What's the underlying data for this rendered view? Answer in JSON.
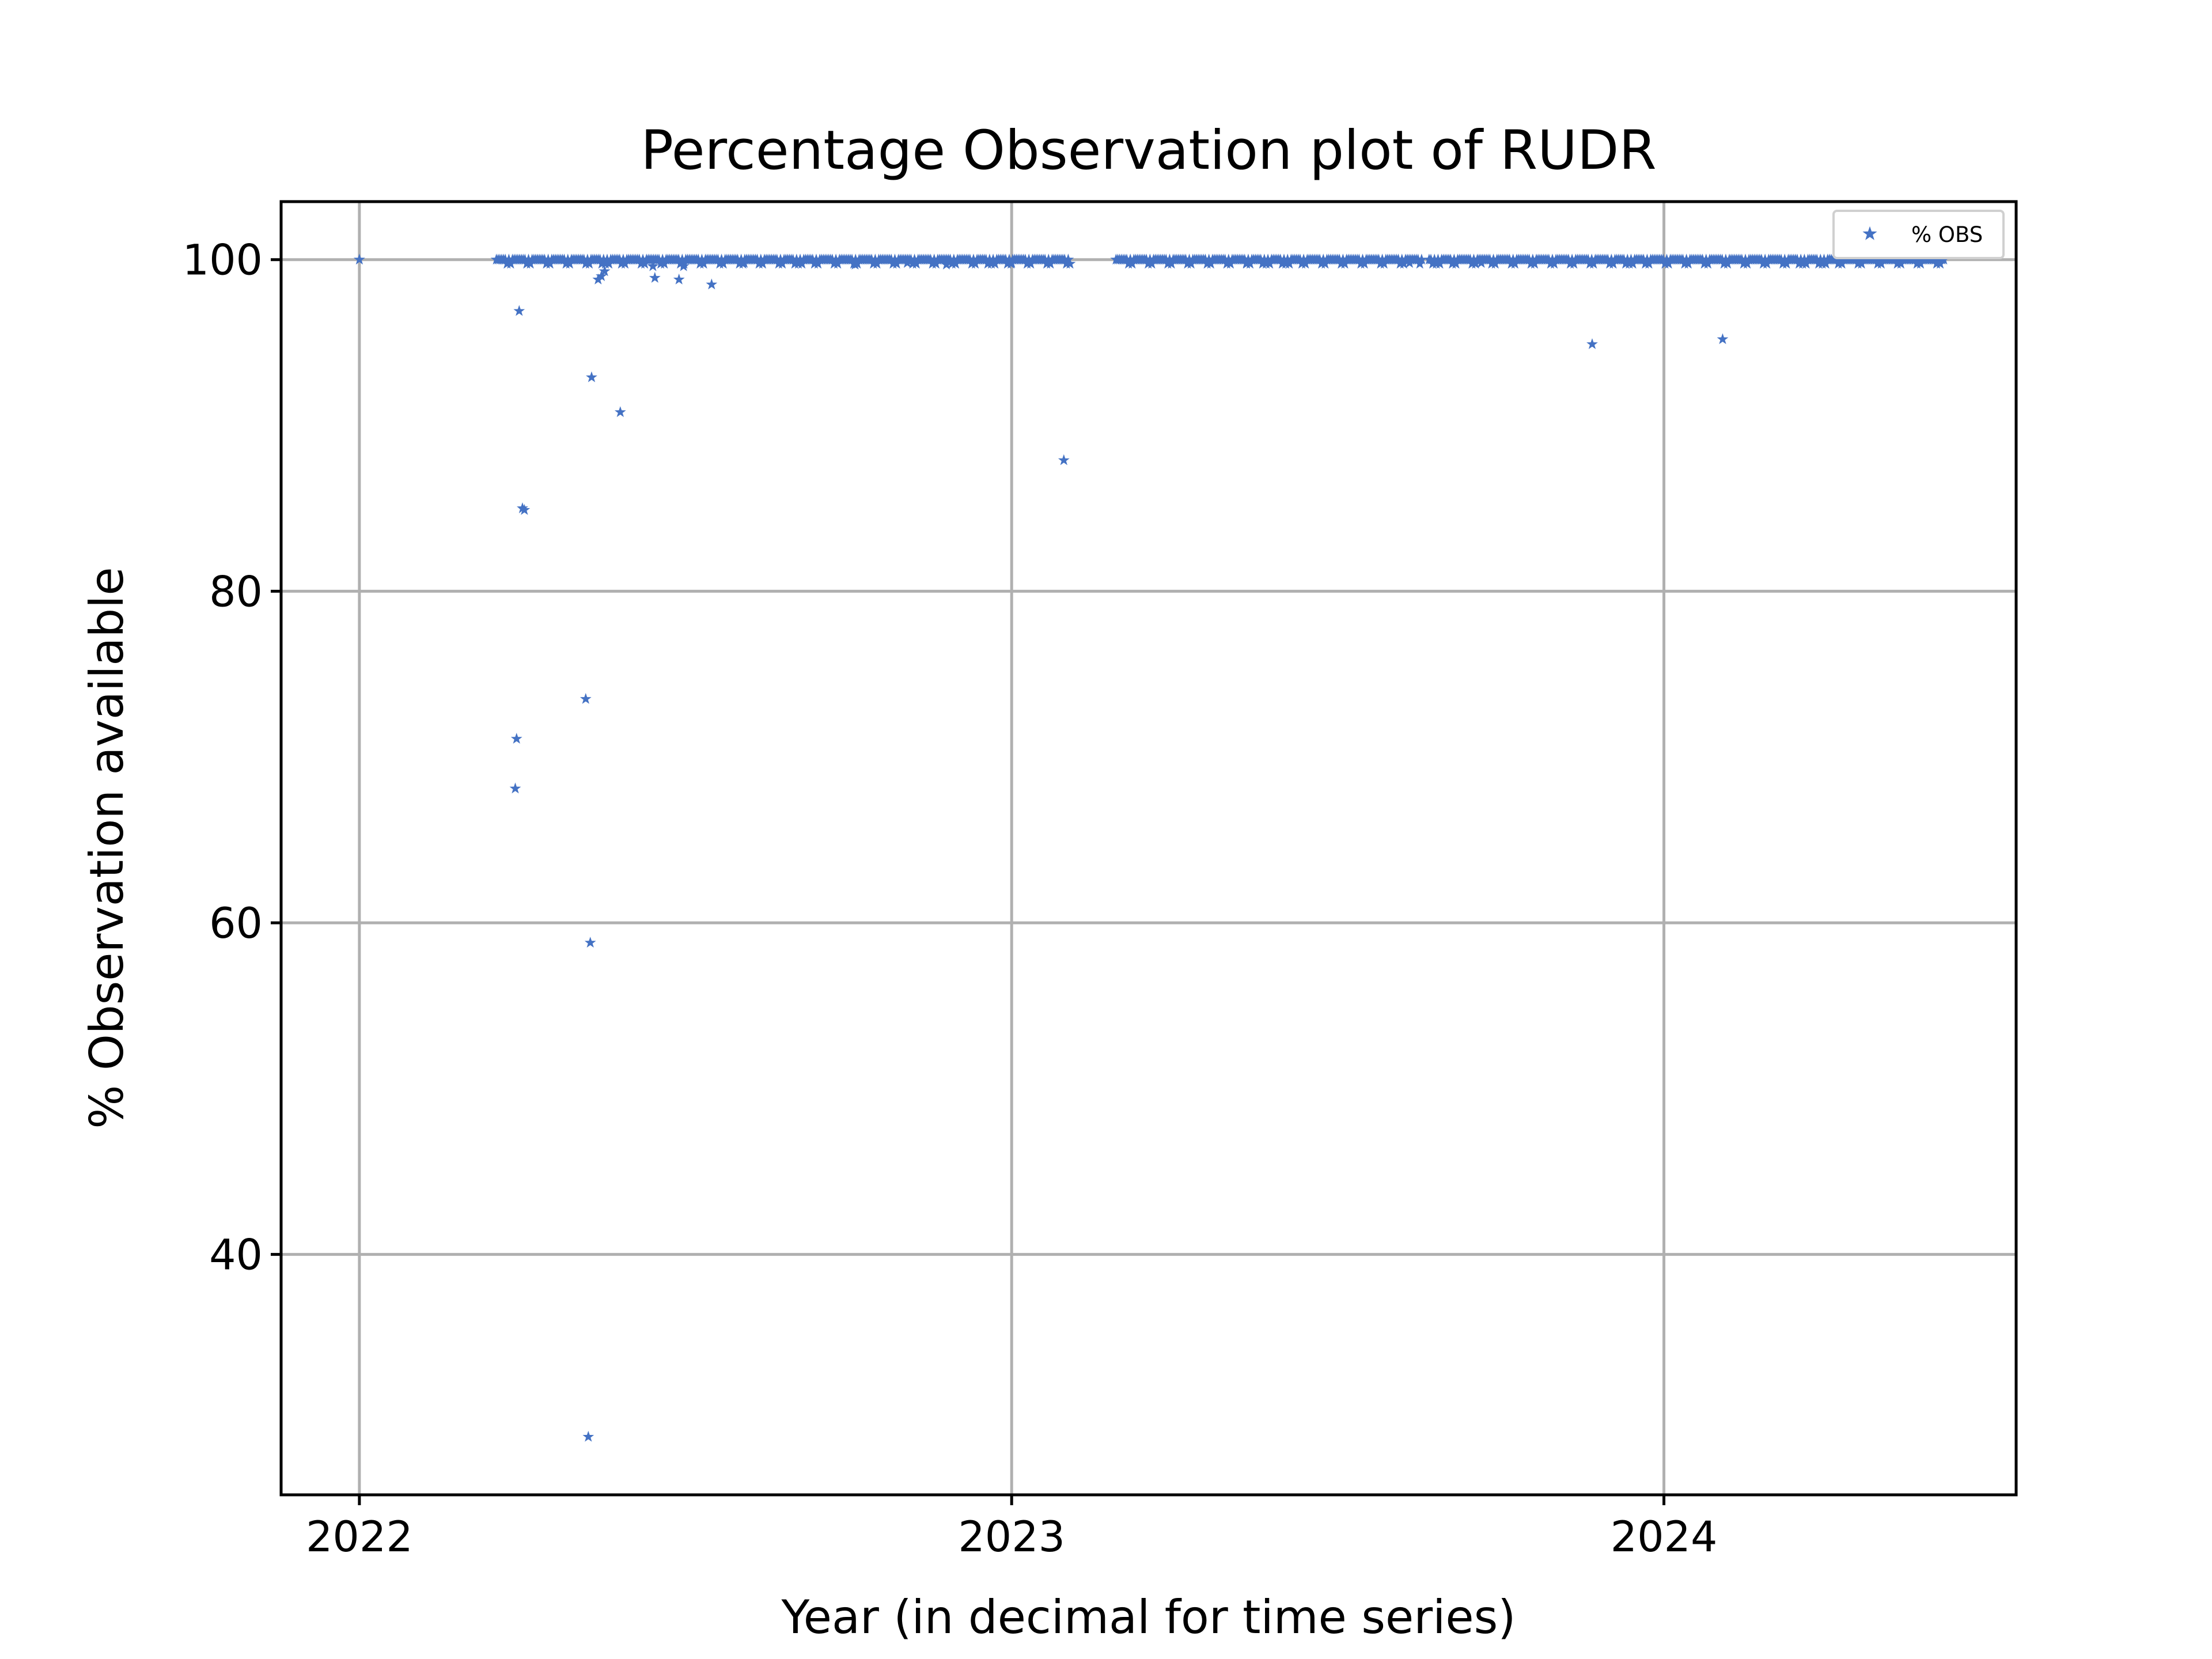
{
  "chart_data": {
    "type": "scatter",
    "title": "Percentage Observation plot of RUDR",
    "xlabel": "Year (in decimal for time series)",
    "ylabel": "% Observation available",
    "xlim": [
      2021.88,
      2024.54
    ],
    "ylim": [
      25.5,
      103.5
    ],
    "xticks": [
      2022,
      2023,
      2024
    ],
    "xtick_labels": [
      "2022",
      "2023",
      "2024"
    ],
    "yticks": [
      40,
      60,
      80,
      100
    ],
    "ytick_labels": [
      "40",
      "60",
      "80",
      "100"
    ],
    "grid": true,
    "legend": {
      "position": "top-right",
      "entries": [
        "% OBS"
      ]
    },
    "marker": "star",
    "series": [
      {
        "name": "% OBS",
        "color": "#4472c4",
        "full_ranges": [
          [
            2022.21,
            2023.09
          ],
          [
            2023.16,
            2023.63
          ],
          [
            2023.64,
            2024.43
          ]
        ],
        "full_value": 100,
        "points": [
          {
            "x": 2022.0,
            "y": 100
          },
          {
            "x": 2022.245,
            "y": 96.9
          },
          {
            "x": 2022.25,
            "y": 85.0
          },
          {
            "x": 2022.253,
            "y": 84.9
          },
          {
            "x": 2022.241,
            "y": 71.1
          },
          {
            "x": 2022.239,
            "y": 68.1
          },
          {
            "x": 2022.347,
            "y": 73.5
          },
          {
            "x": 2022.356,
            "y": 92.9
          },
          {
            "x": 2022.354,
            "y": 58.8
          },
          {
            "x": 2022.351,
            "y": 29.0
          },
          {
            "x": 2022.366,
            "y": 98.8
          },
          {
            "x": 2022.371,
            "y": 99.0
          },
          {
            "x": 2022.376,
            "y": 99.3
          },
          {
            "x": 2022.4,
            "y": 90.8
          },
          {
            "x": 2022.45,
            "y": 99.6
          },
          {
            "x": 2022.453,
            "y": 98.9
          },
          {
            "x": 2022.49,
            "y": 98.8
          },
          {
            "x": 2022.497,
            "y": 99.6
          },
          {
            "x": 2022.54,
            "y": 98.5
          },
          {
            "x": 2022.59,
            "y": 99.8
          },
          {
            "x": 2022.76,
            "y": 99.7
          },
          {
            "x": 2022.84,
            "y": 99.8
          },
          {
            "x": 2022.9,
            "y": 99.7
          },
          {
            "x": 2023.0,
            "y": 99.8
          },
          {
            "x": 2023.08,
            "y": 87.9
          },
          {
            "x": 2023.36,
            "y": 99.8
          },
          {
            "x": 2023.61,
            "y": 99.8
          },
          {
            "x": 2023.72,
            "y": 99.8
          },
          {
            "x": 2023.89,
            "y": 94.9
          },
          {
            "x": 2024.09,
            "y": 95.2
          }
        ]
      }
    ]
  }
}
